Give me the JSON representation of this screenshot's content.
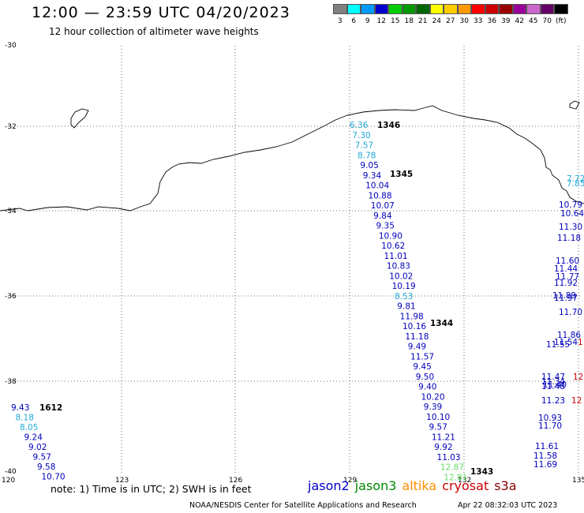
{
  "header": {
    "title": "12:00 — 23:59 UTC 04/20/2023",
    "subtitle": "12 hour collection of altimeter wave heights"
  },
  "colorbar": {
    "labels": [
      "3",
      "6",
      "9",
      "12",
      "15",
      "18",
      "21",
      "24",
      "27",
      "30",
      "33",
      "36",
      "39",
      "42",
      "45",
      "70",
      "(ft)"
    ],
    "colors": [
      "#808080",
      "#00ffff",
      "#0099ff",
      "#0000cc",
      "#00cc00",
      "#009900",
      "#006600",
      "#ffff00",
      "#ffcc00",
      "#ff9900",
      "#ff0000",
      "#cc0000",
      "#990000",
      "#990099",
      "#cc66cc",
      "#660066",
      "#000000"
    ]
  },
  "axes": {
    "lat_labels": [
      "-30",
      "-32",
      "-34",
      "-36",
      "-38",
      "-40"
    ],
    "lon_labels": [
      "120",
      "123",
      "126",
      "129",
      "132",
      "135"
    ]
  },
  "track_labels": [
    {
      "text": "1346",
      "color": "#8b0000"
    },
    {
      "text": "1345",
      "color": "#8b0000"
    },
    {
      "text": "1344",
      "color": "#8b0000"
    },
    {
      "text": "1343",
      "color": "#8b0000"
    },
    {
      "text": "1612",
      "color": "#008000"
    }
  ],
  "track_main": [
    {
      "v": "6.36",
      "c": "#20a8d8"
    },
    {
      "v": "7.30",
      "c": "#20a8d8"
    },
    {
      "v": "7.57",
      "c": "#20a8d8"
    },
    {
      "v": "8.78",
      "c": "#20a8d8"
    },
    {
      "v": "9.05",
      "c": "#0000bb"
    },
    {
      "v": "9.34",
      "c": "#0000bb"
    },
    {
      "v": "10.04",
      "c": "#0000bb"
    },
    {
      "v": "10.88",
      "c": "#0000bb"
    },
    {
      "v": "10.07",
      "c": "#0000bb"
    },
    {
      "v": "9.84",
      "c": "#0000bb"
    },
    {
      "v": "9.35",
      "c": "#0000bb"
    },
    {
      "v": "10.90",
      "c": "#0000bb"
    },
    {
      "v": "10.62",
      "c": "#0000bb"
    },
    {
      "v": "11.01",
      "c": "#0000bb"
    },
    {
      "v": "10.83",
      "c": "#0000bb"
    },
    {
      "v": "10.02",
      "c": "#0000bb"
    },
    {
      "v": "10.19",
      "c": "#0000bb"
    },
    {
      "v": "8.53",
      "c": "#20a8d8"
    },
    {
      "v": "9.81",
      "c": "#0000bb"
    },
    {
      "v": "11.98",
      "c": "#0000bb"
    },
    {
      "v": "10.16",
      "c": "#0000bb"
    },
    {
      "v": "11.18",
      "c": "#0000bb"
    },
    {
      "v": "9.49",
      "c": "#0000bb"
    },
    {
      "v": "11.57",
      "c": "#0000bb"
    },
    {
      "v": "9.45",
      "c": "#0000bb"
    },
    {
      "v": "9.50",
      "c": "#0000bb"
    },
    {
      "v": "9.40",
      "c": "#0000bb"
    },
    {
      "v": "10.20",
      "c": "#0000bb"
    },
    {
      "v": "9.39",
      "c": "#0000bb"
    },
    {
      "v": "10.10",
      "c": "#0000bb"
    },
    {
      "v": "9.57",
      "c": "#0000bb"
    },
    {
      "v": "11.21",
      "c": "#0000bb"
    },
    {
      "v": "9.92",
      "c": "#0000bb"
    },
    {
      "v": "11.03",
      "c": "#0000bb"
    },
    {
      "v": "12.87",
      "c": "#66dd66"
    },
    {
      "v": "12.81",
      "c": "#66dd66"
    }
  ],
  "track_left": [
    {
      "v": "9.43",
      "c": "#0000bb"
    },
    {
      "v": "8.18",
      "c": "#20a8d8"
    },
    {
      "v": "8.05",
      "c": "#20a8d8"
    },
    {
      "v": "9.24",
      "c": "#0000bb"
    },
    {
      "v": "9.02",
      "c": "#0000bb"
    },
    {
      "v": "9.57",
      "c": "#0000bb"
    },
    {
      "v": "9.58",
      "c": "#0000bb"
    },
    {
      "v": "10.70",
      "c": "#0000bb"
    }
  ],
  "track_right": [
    {
      "v": "7.72",
      "c": "#20a8d8"
    },
    {
      "v": "7.85",
      "c": "#20a8d8"
    },
    {
      "v": "10.79",
      "c": "#0000bb"
    },
    {
      "v": "10.64",
      "c": "#0000bb"
    },
    {
      "v": "11.30",
      "c": "#0000bb"
    },
    {
      "v": "11.18",
      "c": "#0000bb"
    },
    {
      "v": "11.60",
      "c": "#0000bb"
    },
    {
      "v": "11.44",
      "c": "#0000bb"
    },
    {
      "v": "11.77",
      "c": "#0000bb"
    },
    {
      "v": "11.92",
      "c": "#0000bb"
    },
    {
      "v": "11.89",
      "c": "#0000bb"
    },
    {
      "v": "11.97",
      "c": "#0000bb"
    },
    {
      "v": "11.70",
      "c": "#0000bb"
    },
    {
      "v": "11.86",
      "c": "#0000bb"
    },
    {
      "v": "11.54",
      "c": "#0000bb"
    },
    {
      "v": "11.55",
      "c": "#0000bb"
    },
    {
      "v": "11.47",
      "c": "#0000bb"
    },
    {
      "v": "11.34",
      "c": "#0000bb"
    },
    {
      "v": "11.48",
      "c": "#0000bb"
    },
    {
      "v": "11.40",
      "c": "#0000bb"
    },
    {
      "v": "11.23",
      "c": "#0000bb"
    },
    {
      "v": "10.93",
      "c": "#0000bb"
    },
    {
      "v": "11.70",
      "c": "#0000bb"
    },
    {
      "v": "11.61",
      "c": "#0000bb"
    },
    {
      "v": "11.58",
      "c": "#0000bb"
    },
    {
      "v": "11.69",
      "c": "#0000bb"
    }
  ],
  "track_right_edge": [
    {
      "v": "1",
      "c": "#cc0000"
    },
    {
      "v": "12",
      "c": "#cc0000"
    },
    {
      "v": "12",
      "c": "#cc0000"
    }
  ],
  "footer": {
    "note": "note:  1) Time is in UTC;  2) SWH is in feet",
    "satellites": [
      {
        "name": "jason2",
        "color": "#0000cc"
      },
      {
        "name": "jason3",
        "color": "#008800"
      },
      {
        "name": "altika",
        "color": "#ff8c00"
      },
      {
        "name": "cryosat",
        "color": "#cc0000"
      },
      {
        "name": "s3a",
        "color": "#8b0000"
      }
    ],
    "credit": "NOAA/NESDIS Center for Satellite Applications and Research",
    "date": "Apr 22 08:32:03 UTC 2023"
  }
}
